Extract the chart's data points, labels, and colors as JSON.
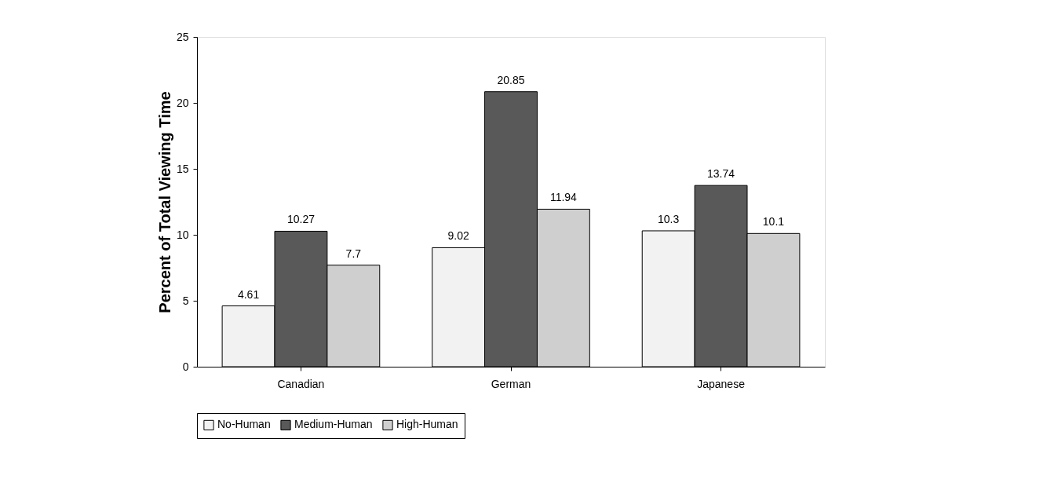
{
  "chart_data": {
    "type": "bar",
    "ylabel": "Percent of Total Viewing Time",
    "categories": [
      "Canadian",
      "German",
      "Japanese"
    ],
    "series": [
      {
        "name": "No-Human",
        "color": "#f2f2f2",
        "values": [
          4.61,
          9.02,
          10.3
        ]
      },
      {
        "name": "Medium-Human",
        "color": "#595959",
        "values": [
          10.27,
          20.85,
          13.74
        ]
      },
      {
        "name": "High-Human",
        "color": "#cfcfcf",
        "values": [
          7.7,
          11.94,
          10.1
        ]
      }
    ],
    "ylim": [
      0,
      25
    ],
    "yticks": [
      0,
      5,
      10,
      15,
      20,
      25
    ],
    "grid": false,
    "legend": "bottom",
    "data_labels": true
  }
}
